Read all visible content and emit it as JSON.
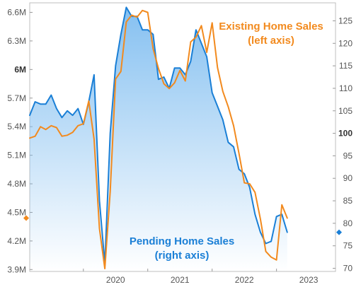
{
  "chart_data": {
    "type": "line",
    "title": "",
    "xlabel": "",
    "grid": false,
    "x_ticks": [
      "2020",
      "2021",
      "2022",
      "2023"
    ],
    "left_axis": {
      "unit": "home sales (millions, SAAR)",
      "ticks": [
        "6.6M",
        "6.3M",
        "6M",
        "5.7M",
        "5.4M",
        "5.1M",
        "4.8M",
        "4.5M",
        "4.2M",
        "3.9M"
      ],
      "tick_values": [
        6.6,
        6.3,
        6.0,
        5.7,
        5.4,
        5.1,
        4.8,
        4.5,
        4.2,
        3.9
      ],
      "emphasized_tick": "6M",
      "range": [
        3.88,
        6.7
      ]
    },
    "right_axis": {
      "ticks": [
        "125",
        "120",
        "115",
        "110",
        "105",
        "100",
        "95",
        "90",
        "85",
        "80",
        "75",
        "70"
      ],
      "tick_values": [
        125,
        120,
        115,
        110,
        105,
        100,
        95,
        90,
        85,
        80,
        75,
        70
      ],
      "emphasized_tick": "100",
      "range": [
        69.3,
        129
      ]
    },
    "x_range": [
      "2019-03",
      "2023-12"
    ],
    "series": [
      {
        "name": "Pending Home Sales",
        "axis": "right",
        "color": "#1a7fd6",
        "fill": "gradient-blue",
        "points": [
          [
            "2019-03",
            104
          ],
          [
            "2019-04",
            107
          ],
          [
            "2019-05",
            106.5
          ],
          [
            "2019-06",
            106.5
          ],
          [
            "2019-07",
            108.5
          ],
          [
            "2019-08",
            105.5
          ],
          [
            "2019-09",
            103.5
          ],
          [
            "2019-10",
            105
          ],
          [
            "2019-11",
            104
          ],
          [
            "2019-12",
            105.5
          ],
          [
            "2020-01",
            102
          ],
          [
            "2020-02",
            107
          ],
          [
            "2020-03",
            113
          ],
          [
            "2020-04",
            85
          ],
          [
            "2020-05",
            71
          ],
          [
            "2020-06",
            100
          ],
          [
            "2020-07",
            115
          ],
          [
            "2020-08",
            122
          ],
          [
            "2020-09",
            128
          ],
          [
            "2020-10",
            126
          ],
          [
            "2020-11",
            126
          ],
          [
            "2020-12",
            123
          ],
          [
            "2021-01",
            123
          ],
          [
            "2021-02",
            122
          ],
          [
            "2021-03",
            112
          ],
          [
            "2021-04",
            112.5
          ],
          [
            "2021-05",
            110
          ],
          [
            "2021-06",
            114.5
          ],
          [
            "2021-07",
            114.5
          ],
          [
            "2021-08",
            113
          ],
          [
            "2021-09",
            116
          ],
          [
            "2021-10",
            123
          ],
          [
            "2021-11",
            120
          ],
          [
            "2021-12",
            117
          ],
          [
            "2022-01",
            109
          ],
          [
            "2022-02",
            106
          ],
          [
            "2022-03",
            103
          ],
          [
            "2022-04",
            98
          ],
          [
            "2022-05",
            97
          ],
          [
            "2022-06",
            92
          ],
          [
            "2022-07",
            91
          ],
          [
            "2022-08",
            88
          ],
          [
            "2022-09",
            82
          ],
          [
            "2022-10",
            78
          ],
          [
            "2022-11",
            75.5
          ],
          [
            "2022-12",
            76
          ],
          [
            "2023-01",
            81.5
          ],
          [
            "2023-02",
            82
          ],
          [
            "2023-03",
            78
          ]
        ]
      },
      {
        "name": "Existing Home Sales",
        "axis": "left",
        "color": "#f28a1e",
        "points": [
          [
            "2019-03",
            5.28
          ],
          [
            "2019-04",
            5.3
          ],
          [
            "2019-05",
            5.4
          ],
          [
            "2019-06",
            5.37
          ],
          [
            "2019-07",
            5.41
          ],
          [
            "2019-08",
            5.39
          ],
          [
            "2019-09",
            5.3
          ],
          [
            "2019-10",
            5.31
          ],
          [
            "2019-11",
            5.34
          ],
          [
            "2019-12",
            5.41
          ],
          [
            "2020-01",
            5.43
          ],
          [
            "2020-02",
            5.67
          ],
          [
            "2020-03",
            5.27
          ],
          [
            "2020-04",
            4.33
          ],
          [
            "2020-05",
            3.91
          ],
          [
            "2020-06",
            4.72
          ],
          [
            "2020-07",
            5.9
          ],
          [
            "2020-08",
            5.98
          ],
          [
            "2020-09",
            6.5
          ],
          [
            "2020-10",
            6.57
          ],
          [
            "2020-11",
            6.55
          ],
          [
            "2020-12",
            6.62
          ],
          [
            "2021-01",
            6.6
          ],
          [
            "2021-02",
            6.22
          ],
          [
            "2021-03",
            6.01
          ],
          [
            "2021-04",
            5.85
          ],
          [
            "2021-05",
            5.8
          ],
          [
            "2021-06",
            5.86
          ],
          [
            "2021-07",
            5.99
          ],
          [
            "2021-08",
            5.88
          ],
          [
            "2021-09",
            6.29
          ],
          [
            "2021-10",
            6.34
          ],
          [
            "2021-11",
            6.46
          ],
          [
            "2021-12",
            6.18
          ],
          [
            "2022-01",
            6.49
          ],
          [
            "2022-02",
            6.02
          ],
          [
            "2022-03",
            5.77
          ],
          [
            "2022-04",
            5.61
          ],
          [
            "2022-05",
            5.41
          ],
          [
            "2022-06",
            5.12
          ],
          [
            "2022-07",
            4.81
          ],
          [
            "2022-08",
            4.8
          ],
          [
            "2022-09",
            4.71
          ],
          [
            "2022-10",
            4.43
          ],
          [
            "2022-11",
            4.09
          ],
          [
            "2022-12",
            4.03
          ],
          [
            "2023-01",
            4.0
          ],
          [
            "2023-02",
            4.58
          ],
          [
            "2023-03",
            4.44
          ]
        ]
      }
    ],
    "annotations": [
      {
        "line1": "Existing Home Sales",
        "line2": "(left axis)",
        "color": "#f28a1e"
      },
      {
        "line1": "Pending Home Sales",
        "line2": "(right axis)",
        "color": "#1a7fd6"
      }
    ],
    "current_markers": [
      {
        "axis": "left",
        "value": 4.44,
        "color": "#f28a1e"
      },
      {
        "axis": "right",
        "value": 78,
        "color": "#1a7fd6"
      }
    ]
  }
}
